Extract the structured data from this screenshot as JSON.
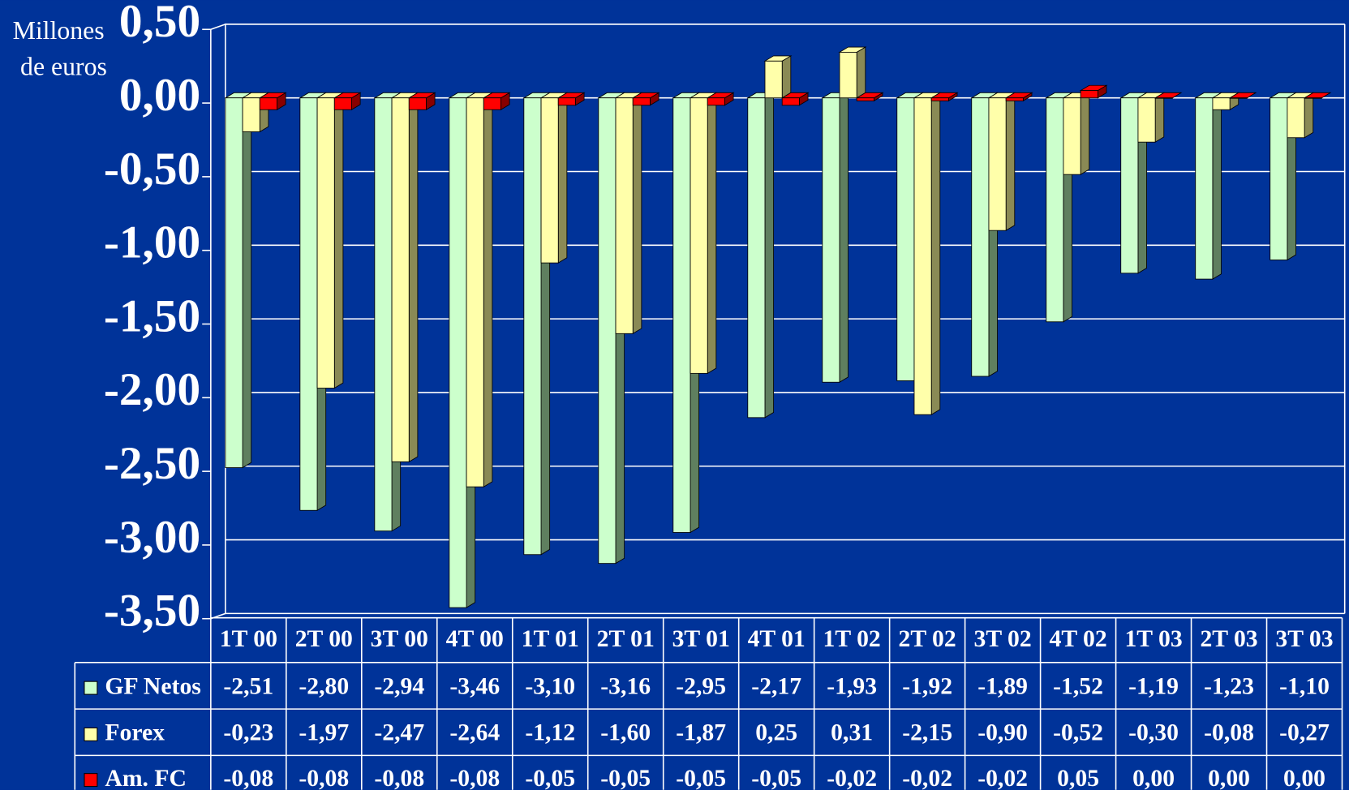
{
  "chart_data": {
    "type": "bar3d",
    "y_label": [
      "Millones",
      "de euros"
    ],
    "categories": [
      "1T 00",
      "2T 00",
      "3T 00",
      "4T 00",
      "1T 01",
      "2T 01",
      "3T 01",
      "4T 01",
      "1T 02",
      "2T 02",
      "3T 02",
      "4T 02",
      "1T 03",
      "2T 03",
      "3T 03"
    ],
    "series": [
      {
        "name": "GF Netos",
        "color": "#ccffcc",
        "side": "#5f7f5f",
        "values": [
          -2.51,
          -2.8,
          -2.94,
          -3.46,
          -3.1,
          -3.16,
          -2.95,
          -2.17,
          -1.93,
          -1.92,
          -1.89,
          -1.52,
          -1.19,
          -1.23,
          -1.1
        ],
        "value_labels": [
          "-2,51",
          "-2,80",
          "-2,94",
          "-3,46",
          "-3,10",
          "-3,16",
          "-2,95",
          "-2,17",
          "-1,93",
          "-1,92",
          "-1,89",
          "-1,52",
          "-1,19",
          "-1,23",
          "-1,10"
        ]
      },
      {
        "name": "Forex",
        "color": "#ffffaa",
        "side": "#8a8a55",
        "values": [
          -0.23,
          -1.97,
          -2.47,
          -2.64,
          -1.12,
          -1.6,
          -1.87,
          0.25,
          0.31,
          -2.15,
          -0.9,
          -0.52,
          -0.3,
          -0.08,
          -0.27
        ],
        "value_labels": [
          "-0,23",
          "-1,97",
          "-2,47",
          "-2,64",
          "-1,12",
          "-1,60",
          "-1,87",
          "0,25",
          "0,31",
          "-2,15",
          "-0,90",
          "-0,52",
          "-0,30",
          "-0,08",
          "-0,27"
        ]
      },
      {
        "name": "Am. FC",
        "color": "#ff0000",
        "side": "#880000",
        "values": [
          -0.08,
          -0.08,
          -0.08,
          -0.08,
          -0.05,
          -0.05,
          -0.05,
          -0.05,
          -0.02,
          -0.02,
          -0.02,
          0.05,
          0.0,
          0.0,
          0.0
        ],
        "value_labels": [
          "-0,08",
          "-0,08",
          "-0,08",
          "-0,08",
          "-0,05",
          "-0,05",
          "-0,05",
          "-0,05",
          "-0,02",
          "-0,02",
          "-0,02",
          "0,05",
          "0,00",
          "0,00",
          "0,00"
        ]
      }
    ],
    "ylim": [
      -3.5,
      0.5
    ],
    "yticks": [
      {
        "value": 0.5,
        "label": "0,50"
      },
      {
        "value": 0,
        "label": "0,00"
      },
      {
        "value": -0.5,
        "label": "-0,50"
      },
      {
        "value": -1,
        "label": "-1,00"
      },
      {
        "value": -1.5,
        "label": "-1,50"
      },
      {
        "value": -2,
        "label": "-2,00"
      },
      {
        "value": -2.5,
        "label": "-2,50"
      },
      {
        "value": -3,
        "label": "-3,00"
      },
      {
        "value": -3.5,
        "label": "-3,50"
      }
    ],
    "grid": true
  }
}
